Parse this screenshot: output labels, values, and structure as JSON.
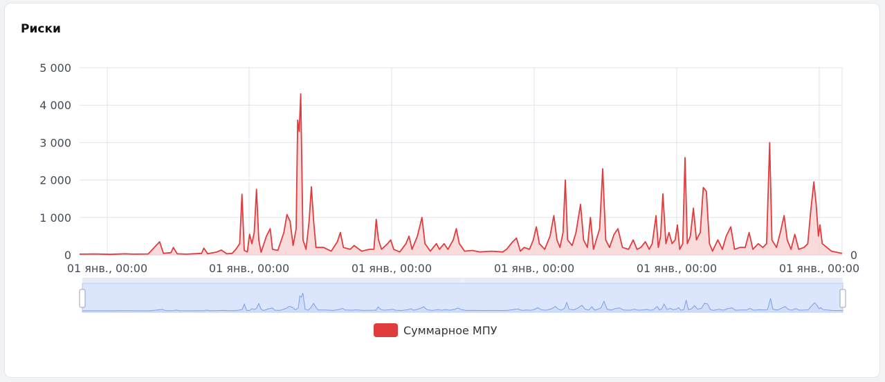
{
  "card": {
    "title": "Риски"
  },
  "colors": {
    "series": "#e03b3d",
    "series_fill": "#f7cfd0",
    "grid": "#dfe3ea",
    "zoom_fill": "#dbe5fb",
    "zoom_line": "#7c9fe6",
    "zoom_border": "#b6c8ee"
  },
  "chart_data": {
    "type": "area",
    "title": "",
    "xlabel": "",
    "ylabel": "",
    "ylim": [
      0,
      5000
    ],
    "y_ticks": [
      "5 000",
      "4 000",
      "3 000",
      "2 000",
      "1 000",
      "0"
    ],
    "x_ticks": [
      "01 янв., 00:00",
      "01 янв., 00:00",
      "01 янв., 00:00",
      "01 янв., 00:00",
      "01 янв., 00:00",
      "01 янв., 00:00"
    ],
    "right_axis_label": "0",
    "grid": true,
    "legend": "bottom-center",
    "x_domain": [
      0,
      100
    ],
    "series": [
      {
        "name": "Суммарное МПУ",
        "points": [
          [
            0,
            20
          ],
          [
            2,
            25
          ],
          [
            4,
            15
          ],
          [
            6,
            30
          ],
          [
            7,
            20
          ],
          [
            9,
            25
          ],
          [
            10.5,
            350
          ],
          [
            11,
            40
          ],
          [
            12,
            60
          ],
          [
            12.3,
            200
          ],
          [
            12.8,
            30
          ],
          [
            14,
            20
          ],
          [
            16,
            40
          ],
          [
            16.3,
            180
          ],
          [
            16.8,
            30
          ],
          [
            18,
            80
          ],
          [
            18.6,
            130
          ],
          [
            19.3,
            30
          ],
          [
            20,
            40
          ],
          [
            20.5,
            150
          ],
          [
            21,
            300
          ],
          [
            21.3,
            1620
          ],
          [
            21.6,
            120
          ],
          [
            22,
            80
          ],
          [
            22.3,
            550
          ],
          [
            22.6,
            300
          ],
          [
            22.9,
            600
          ],
          [
            23.2,
            1750
          ],
          [
            23.5,
            400
          ],
          [
            23.8,
            70
          ],
          [
            24.5,
            500
          ],
          [
            25,
            700
          ],
          [
            25.3,
            150
          ],
          [
            26,
            120
          ],
          [
            26.8,
            600
          ],
          [
            27.2,
            1080
          ],
          [
            27.6,
            900
          ],
          [
            28,
            250
          ],
          [
            28.4,
            700
          ],
          [
            28.6,
            3600
          ],
          [
            28.8,
            3300
          ],
          [
            29,
            4300
          ],
          [
            29.3,
            400
          ],
          [
            29.7,
            150
          ],
          [
            30.1,
            900
          ],
          [
            30.4,
            1820
          ],
          [
            30.7,
            900
          ],
          [
            31,
            200
          ],
          [
            32,
            200
          ],
          [
            33,
            100
          ],
          [
            33.8,
            350
          ],
          [
            34.2,
            600
          ],
          [
            34.6,
            200
          ],
          [
            35.5,
            150
          ],
          [
            36,
            250
          ],
          [
            37,
            100
          ],
          [
            38,
            150
          ],
          [
            38.6,
            150
          ],
          [
            38.9,
            950
          ],
          [
            39.2,
            400
          ],
          [
            39.6,
            150
          ],
          [
            40.4,
            300
          ],
          [
            40.8,
            400
          ],
          [
            41.2,
            150
          ],
          [
            42,
            80
          ],
          [
            42.8,
            300
          ],
          [
            43.2,
            500
          ],
          [
            43.6,
            150
          ],
          [
            44.3,
            500
          ],
          [
            44.9,
            1000
          ],
          [
            45.3,
            300
          ],
          [
            46,
            100
          ],
          [
            46.8,
            300
          ],
          [
            47.2,
            150
          ],
          [
            47.8,
            300
          ],
          [
            48.3,
            150
          ],
          [
            49,
            400
          ],
          [
            49.4,
            700
          ],
          [
            49.8,
            300
          ],
          [
            50.5,
            100
          ],
          [
            51.5,
            120
          ],
          [
            52.5,
            80
          ],
          [
            54,
            100
          ],
          [
            55.5,
            80
          ],
          [
            56,
            150
          ],
          [
            56.8,
            350
          ],
          [
            57.3,
            450
          ],
          [
            57.8,
            100
          ],
          [
            58.3,
            200
          ],
          [
            59,
            150
          ],
          [
            59.5,
            400
          ],
          [
            59.9,
            750
          ],
          [
            60.3,
            300
          ],
          [
            61,
            150
          ],
          [
            61.7,
            500
          ],
          [
            62.2,
            1050
          ],
          [
            62.6,
            400
          ],
          [
            63,
            200
          ],
          [
            63.4,
            600
          ],
          [
            63.7,
            2000
          ],
          [
            64,
            400
          ],
          [
            64.6,
            250
          ],
          [
            65.1,
            600
          ],
          [
            65.7,
            1350
          ],
          [
            66.1,
            400
          ],
          [
            66.6,
            200
          ],
          [
            67,
            1000
          ],
          [
            67.4,
            150
          ],
          [
            68.2,
            700
          ],
          [
            68.6,
            2300
          ],
          [
            69,
            400
          ],
          [
            69.5,
            200
          ],
          [
            70.1,
            550
          ],
          [
            70.6,
            700
          ],
          [
            71.2,
            200
          ],
          [
            72,
            150
          ],
          [
            72.6,
            400
          ],
          [
            73.1,
            150
          ],
          [
            73.6,
            200
          ],
          [
            74.2,
            350
          ],
          [
            74.7,
            150
          ],
          [
            75.1,
            300
          ],
          [
            75.6,
            1050
          ],
          [
            75.9,
            200
          ],
          [
            76.2,
            500
          ],
          [
            76.5,
            1630
          ],
          [
            76.9,
            300
          ],
          [
            77.3,
            600
          ],
          [
            77.7,
            300
          ],
          [
            78.1,
            400
          ],
          [
            78.4,
            800
          ],
          [
            78.7,
            150
          ],
          [
            79.1,
            300
          ],
          [
            79.4,
            2600
          ],
          [
            79.7,
            300
          ],
          [
            80.1,
            500
          ],
          [
            80.5,
            1250
          ],
          [
            80.9,
            400
          ],
          [
            81.4,
            600
          ],
          [
            81.8,
            1800
          ],
          [
            82.2,
            1700
          ],
          [
            82.6,
            300
          ],
          [
            83,
            100
          ],
          [
            83.7,
            400
          ],
          [
            84.3,
            150
          ],
          [
            84.8,
            500
          ],
          [
            85.4,
            750
          ],
          [
            85.9,
            150
          ],
          [
            86.6,
            200
          ],
          [
            87.3,
            200
          ],
          [
            87.8,
            600
          ],
          [
            88.3,
            150
          ],
          [
            89,
            300
          ],
          [
            89.6,
            200
          ],
          [
            90.1,
            300
          ],
          [
            90.5,
            3000
          ],
          [
            90.8,
            400
          ],
          [
            91.4,
            200
          ],
          [
            91.9,
            600
          ],
          [
            92.4,
            1050
          ],
          [
            92.8,
            400
          ],
          [
            93.3,
            150
          ],
          [
            93.8,
            550
          ],
          [
            94.3,
            150
          ],
          [
            95,
            200
          ],
          [
            95.5,
            300
          ],
          [
            95.9,
            1200
          ],
          [
            96.3,
            1950
          ],
          [
            96.6,
            1350
          ],
          [
            96.9,
            500
          ],
          [
            97.1,
            800
          ],
          [
            97.4,
            300
          ],
          [
            98,
            200
          ],
          [
            98.6,
            100
          ],
          [
            100,
            40
          ]
        ]
      }
    ]
  },
  "zoom": {
    "handle_glyph": "|||"
  }
}
